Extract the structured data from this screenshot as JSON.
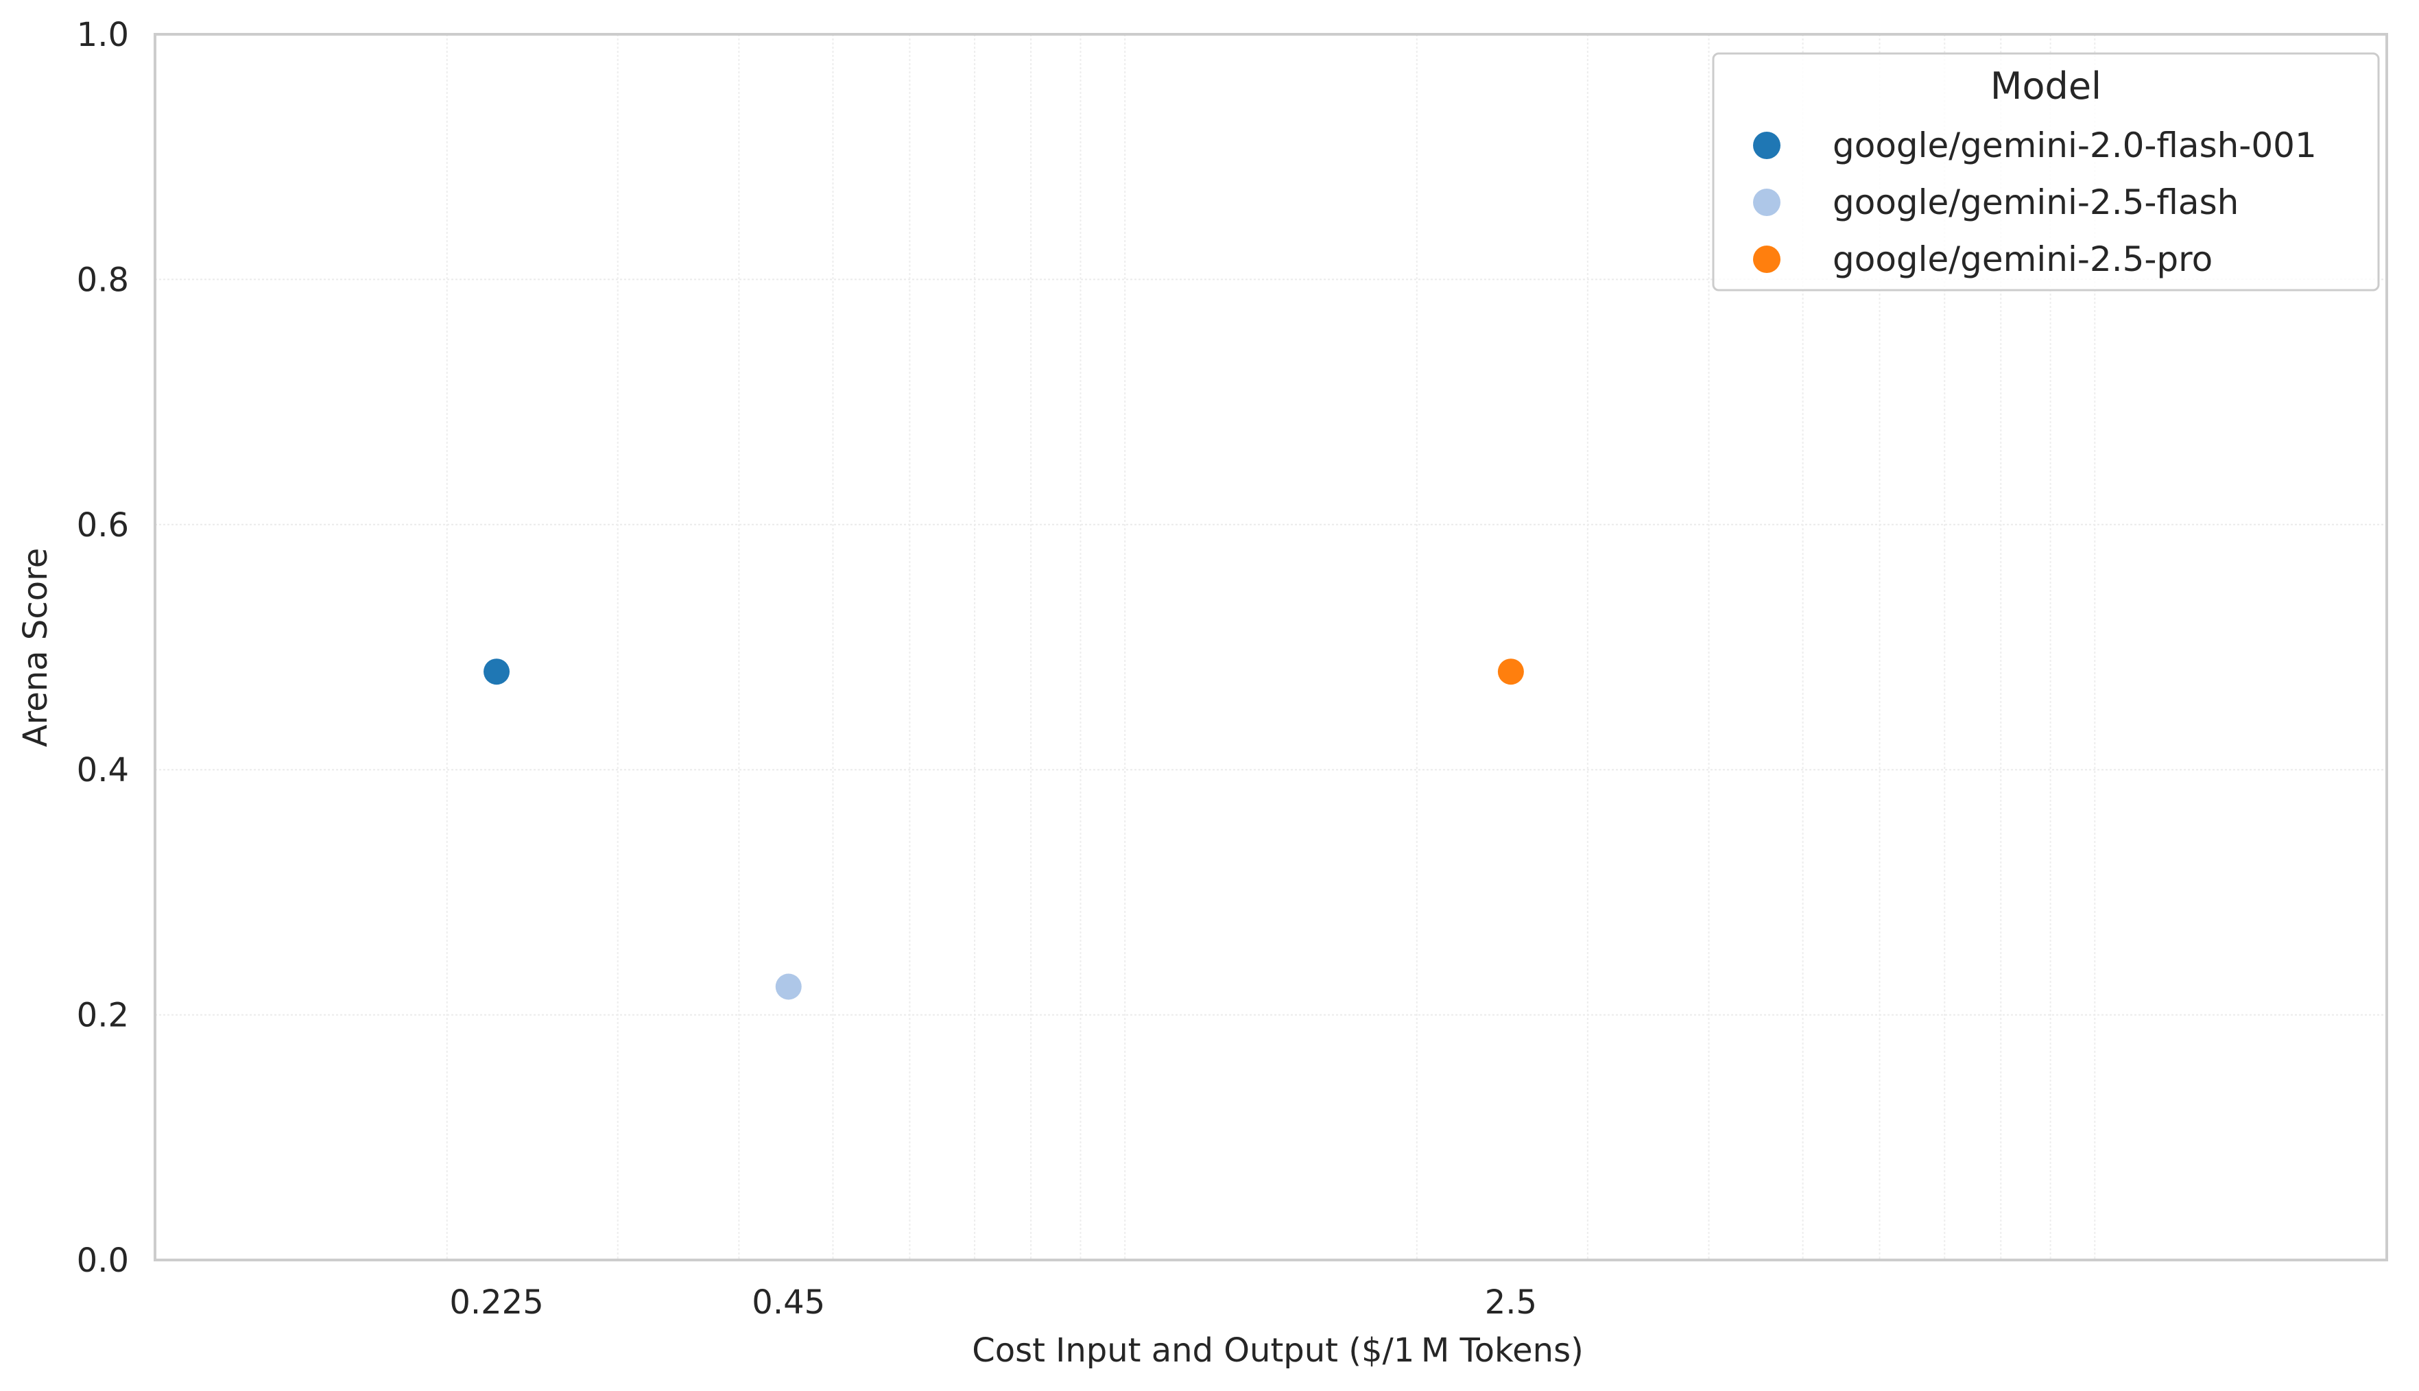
{
  "chart_data": {
    "type": "scatter",
    "title": "",
    "xlabel": "Cost Input and Output ($/1 M Tokens)",
    "ylabel": "Arena Score",
    "x_scale": "log",
    "xlim": [
      0.1,
      20
    ],
    "ylim": [
      0.0,
      1.0
    ],
    "x_ticks": [
      {
        "value": 0.225,
        "label": "0.225"
      },
      {
        "value": 0.45,
        "label": "0.45"
      },
      {
        "value": 2.5,
        "label": "2.5"
      }
    ],
    "y_ticks": [
      {
        "value": 0.0,
        "label": "0.0"
      },
      {
        "value": 0.2,
        "label": "0.2"
      },
      {
        "value": 0.4,
        "label": "0.4"
      },
      {
        "value": 0.6,
        "label": "0.6"
      },
      {
        "value": 0.8,
        "label": "0.8"
      },
      {
        "value": 1.0,
        "label": "1.0"
      }
    ],
    "grid": true,
    "legend": {
      "title": "Model",
      "position": "top-right"
    },
    "series": [
      {
        "name": "google/gemini-2.0-flash-001",
        "color": "#1f77b4",
        "points": [
          {
            "x": 0.225,
            "y": 0.48
          }
        ]
      },
      {
        "name": "google/gemini-2.5-flash",
        "color": "#aec7e8",
        "points": [
          {
            "x": 0.45,
            "y": 0.223
          }
        ]
      },
      {
        "name": "google/gemini-2.5-pro",
        "color": "#ff7f0e",
        "points": [
          {
            "x": 2.5,
            "y": 0.48
          }
        ]
      }
    ]
  }
}
